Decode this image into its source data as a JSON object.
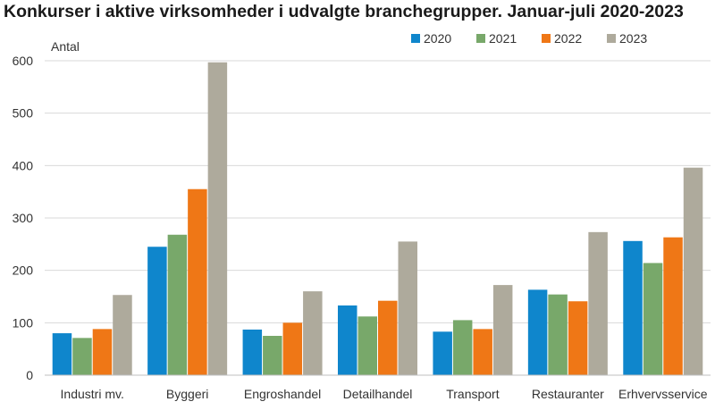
{
  "chart_data": {
    "type": "bar",
    "title": "Konkurser i aktive virksomheder i udvalgte branchegrupper. Januar-juli 2020-2023",
    "ylabel": "Antal",
    "xlabel": "",
    "ylim": [
      0,
      600
    ],
    "yticks": [
      0,
      100,
      200,
      300,
      400,
      500,
      600
    ],
    "grid": true,
    "legend_position": "top-right",
    "categories": [
      "Industri mv.",
      "Byggeri",
      "Engroshandel",
      "Detailhandel",
      "Transport",
      "Restauranter",
      "Erhvervsservice"
    ],
    "series": [
      {
        "name": "2020",
        "color": "#0f86cc",
        "values": [
          80,
          245,
          87,
          133,
          83,
          163,
          256
        ]
      },
      {
        "name": "2021",
        "color": "#78a86a",
        "values": [
          71,
          268,
          75,
          112,
          105,
          154,
          214
        ]
      },
      {
        "name": "2022",
        "color": "#ef7716",
        "values": [
          88,
          355,
          100,
          142,
          88,
          141,
          263
        ]
      },
      {
        "name": "2023",
        "color": "#aeaa9c",
        "values": [
          153,
          597,
          160,
          255,
          172,
          273,
          396
        ]
      }
    ]
  }
}
